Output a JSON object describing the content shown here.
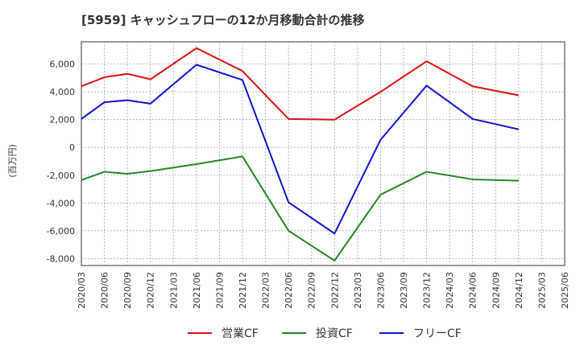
{
  "chart_data": {
    "type": "line",
    "title": "[5959]  キャッシュフローの12か月移動合計の推移",
    "ylabel": "(百万円)",
    "xlabel": "",
    "ylim": [
      -8500,
      7600
    ],
    "yticks": [
      6000,
      4000,
      2000,
      0,
      -2000,
      -4000,
      -6000,
      -8000
    ],
    "ytick_labels": [
      "6,000",
      "4,000",
      "2,000",
      "0",
      "-2,000",
      "-4,000",
      "-6,000",
      "-8,000"
    ],
    "x": [
      "2020/03",
      "2020/06",
      "2020/09",
      "2020/12",
      "2021/03",
      "2021/06",
      "2021/09",
      "2021/12",
      "2022/03",
      "2022/06",
      "2022/09",
      "2022/12",
      "2023/03",
      "2023/06",
      "2023/09",
      "2023/12",
      "2024/03",
      "2024/06",
      "2024/09",
      "2024/12",
      "2025/03",
      "2025/06"
    ],
    "grid": true,
    "legend_position": "bottom",
    "series": [
      {
        "name": "営業CF",
        "color": "#dd1111",
        "points": [
          [
            "2020/03",
            4400
          ],
          [
            "2020/06",
            5050
          ],
          [
            "2020/09",
            5300
          ],
          [
            "2020/12",
            4900
          ],
          [
            "2021/06",
            7150
          ],
          [
            "2021/12",
            5500
          ],
          [
            "2022/06",
            2050
          ],
          [
            "2022/12",
            2000
          ],
          [
            "2023/06",
            4000
          ],
          [
            "2023/12",
            6200
          ],
          [
            "2024/06",
            4400
          ],
          [
            "2024/12",
            3750
          ]
        ]
      },
      {
        "name": "投資CF",
        "color": "#228822",
        "points": [
          [
            "2020/03",
            -2350
          ],
          [
            "2020/06",
            -1750
          ],
          [
            "2020/09",
            -1900
          ],
          [
            "2020/12",
            -1700
          ],
          [
            "2021/06",
            -1200
          ],
          [
            "2021/12",
            -650
          ],
          [
            "2022/06",
            -6000
          ],
          [
            "2022/12",
            -8150
          ],
          [
            "2023/06",
            -3400
          ],
          [
            "2023/12",
            -1750
          ],
          [
            "2024/06",
            -2300
          ],
          [
            "2024/12",
            -2400
          ]
        ]
      },
      {
        "name": "フリーCF",
        "color": "#1111cc",
        "points": [
          [
            "2020/03",
            2050
          ],
          [
            "2020/06",
            3250
          ],
          [
            "2020/09",
            3400
          ],
          [
            "2020/12",
            3150
          ],
          [
            "2021/06",
            5950
          ],
          [
            "2021/12",
            4850
          ],
          [
            "2022/06",
            -3950
          ],
          [
            "2022/12",
            -6200
          ],
          [
            "2023/06",
            550
          ],
          [
            "2023/12",
            4450
          ],
          [
            "2024/06",
            2050
          ],
          [
            "2024/12",
            1300
          ]
        ]
      }
    ]
  }
}
